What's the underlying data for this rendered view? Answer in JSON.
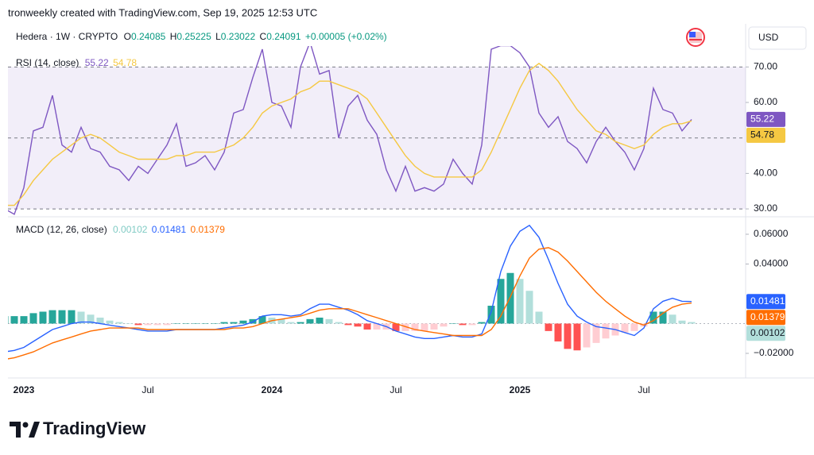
{
  "header": {
    "attribution": "tronweekly created with TradingView.com, Sep 19, 2025 12:53 UTC",
    "symbol": "Hedera · 1W · CRYPTO",
    "ohlc": [
      {
        "label": "O",
        "value": "0.24085"
      },
      {
        "label": "H",
        "value": "0.25225"
      },
      {
        "label": "L",
        "value": "0.23022"
      },
      {
        "label": "C",
        "value": "0.24091"
      }
    ],
    "change": "+0.00005 (+0.02%)",
    "currency": "USD"
  },
  "footer": {
    "brand": "TradingView"
  },
  "chart_data": [
    {
      "type": "line",
      "title": "RSI (14, close)",
      "ylim": [
        28,
        75
      ],
      "yticks": [
        {
          "value": 30,
          "label": "30.00"
        },
        {
          "value": 40,
          "label": "40.00"
        },
        {
          "value": 60,
          "label": "60.00"
        },
        {
          "value": 70,
          "label": "70.00"
        }
      ],
      "levels": [
        70,
        50,
        30
      ],
      "band_color": "#7e57c2",
      "grid": false,
      "series": [
        {
          "color": "#7e57c2",
          "values": [
            30,
            28.5,
            36,
            52,
            53,
            62,
            48,
            46,
            53,
            47,
            46,
            42,
            41,
            38,
            42,
            40,
            44,
            48,
            54,
            42,
            43,
            45,
            41,
            46,
            57,
            58,
            67,
            75,
            60,
            59,
            53,
            70,
            77,
            68,
            69,
            50,
            59,
            62,
            55,
            51,
            41,
            35,
            42,
            35,
            36,
            35,
            37,
            44,
            40,
            37,
            48,
            75,
            76,
            76,
            74,
            70,
            57,
            53,
            56,
            49,
            47,
            43,
            49,
            53,
            49,
            46,
            41,
            47,
            64,
            58,
            57,
            52,
            55.22
          ]
        },
        {
          "color": "#f5c842",
          "values": [
            31,
            31,
            34,
            38,
            41,
            44,
            46,
            48,
            50,
            51,
            50,
            48,
            46,
            45,
            44,
            44,
            44,
            44,
            45,
            45,
            46,
            46,
            46,
            47,
            48,
            50,
            53,
            57,
            59,
            60,
            61,
            63,
            64,
            66,
            66,
            65,
            64,
            63,
            61,
            57,
            53,
            49,
            45,
            42,
            40,
            39,
            39,
            39,
            39,
            39,
            41,
            46,
            52,
            58,
            64,
            69,
            71,
            69,
            66,
            62,
            58,
            55,
            52,
            51,
            49,
            48,
            47,
            48,
            51,
            53,
            54,
            54,
            54.78
          ]
        }
      ]
    },
    {
      "type": "macd",
      "title": "MACD (12, 26, close)",
      "categories": [
        null,
        null,
        "2023",
        null,
        null,
        null,
        null,
        null,
        null,
        null,
        null,
        null,
        null,
        null,
        null,
        "Jul",
        null,
        null,
        null,
        null,
        null,
        null,
        null,
        null,
        null,
        null,
        null,
        null,
        "2024",
        null,
        null,
        null,
        null,
        null,
        null,
        null,
        null,
        null,
        null,
        null,
        null,
        "Jul",
        null,
        null,
        null,
        null,
        null,
        null,
        null,
        null,
        null,
        null,
        null,
        null,
        "2025",
        null,
        null,
        null,
        null,
        null,
        null,
        null,
        null,
        null,
        null,
        null,
        null,
        "Jul",
        null,
        null,
        null,
        null,
        null
      ],
      "ylim": [
        -0.036,
        0.068
      ],
      "yticks": [
        {
          "value": 0.06,
          "label": "0.06000"
        },
        {
          "value": 0.04,
          "label": "0.04000"
        },
        {
          "value": -0.02,
          "label": "−0.02000"
        }
      ],
      "grid": false,
      "histogram": {
        "colors": {
          "grow_above": "#26a69a",
          "fall_above": "#b2dfdb",
          "grow_below": "#ffcdd2",
          "fall_below": "#ff5252"
        },
        "values": [
          0.005,
          0.005,
          0.005,
          0.007,
          0.008,
          0.009,
          0.009,
          0.009,
          0.008,
          0.006,
          0.004,
          0.002,
          0.001,
          0.0,
          -0.001,
          -0.001,
          -0.001,
          -0.001,
          0.0,
          0.0,
          0.0,
          0.0,
          0.0,
          0.001,
          0.001,
          0.002,
          0.003,
          0.005,
          0.004,
          0.003,
          0.001,
          0.001,
          0.003,
          0.004,
          0.003,
          0.001,
          -0.001,
          -0.002,
          -0.004,
          -0.004,
          -0.004,
          -0.005,
          -0.005,
          -0.005,
          -0.005,
          -0.004,
          -0.002,
          0.0,
          -0.001,
          -0.001,
          0.001,
          0.012,
          0.03,
          0.034,
          0.03,
          0.022,
          0.008,
          -0.005,
          -0.012,
          -0.017,
          -0.018,
          -0.016,
          -0.013,
          -0.01,
          -0.008,
          -0.006,
          -0.005,
          -0.002,
          0.008,
          0.008,
          0.006,
          0.002,
          0.00102
        ]
      },
      "series": [
        {
          "color": "#2962ff",
          "values": [
            -0.019,
            -0.018,
            -0.016,
            -0.012,
            -0.008,
            -0.004,
            -0.002,
            0.0,
            0.001,
            0.001,
            0.0,
            -0.001,
            -0.002,
            -0.003,
            -0.004,
            -0.005,
            -0.005,
            -0.005,
            -0.004,
            -0.004,
            -0.004,
            -0.004,
            -0.004,
            -0.003,
            -0.002,
            -0.001,
            0.001,
            0.005,
            0.006,
            0.006,
            0.005,
            0.006,
            0.01,
            0.013,
            0.013,
            0.011,
            0.009,
            0.006,
            0.002,
            0.0,
            -0.002,
            -0.005,
            -0.007,
            -0.009,
            -0.01,
            -0.01,
            -0.009,
            -0.008,
            -0.009,
            -0.009,
            -0.007,
            0.008,
            0.035,
            0.052,
            0.062,
            0.066,
            0.058,
            0.043,
            0.027,
            0.013,
            0.005,
            0.001,
            -0.002,
            -0.003,
            -0.004,
            -0.006,
            -0.008,
            -0.003,
            0.01,
            0.015,
            0.017,
            0.015,
            0.01481
          ]
        },
        {
          "color": "#ff6d00",
          "values": [
            -0.024,
            -0.023,
            -0.021,
            -0.019,
            -0.016,
            -0.013,
            -0.011,
            -0.009,
            -0.007,
            -0.005,
            -0.004,
            -0.003,
            -0.003,
            -0.003,
            -0.003,
            -0.004,
            -0.004,
            -0.004,
            -0.004,
            -0.004,
            -0.004,
            -0.004,
            -0.004,
            -0.004,
            -0.003,
            -0.003,
            -0.002,
            0.0,
            0.002,
            0.003,
            0.004,
            0.005,
            0.007,
            0.009,
            0.01,
            0.01,
            0.01,
            0.008,
            0.006,
            0.004,
            0.002,
            0.0,
            -0.002,
            -0.004,
            -0.005,
            -0.006,
            -0.007,
            -0.008,
            -0.008,
            -0.008,
            -0.008,
            -0.004,
            0.005,
            0.018,
            0.032,
            0.044,
            0.05,
            0.051,
            0.048,
            0.042,
            0.035,
            0.028,
            0.021,
            0.015,
            0.01,
            0.005,
            0.001,
            -0.001,
            0.002,
            0.007,
            0.011,
            0.013,
            0.01379
          ]
        }
      ]
    }
  ]
}
